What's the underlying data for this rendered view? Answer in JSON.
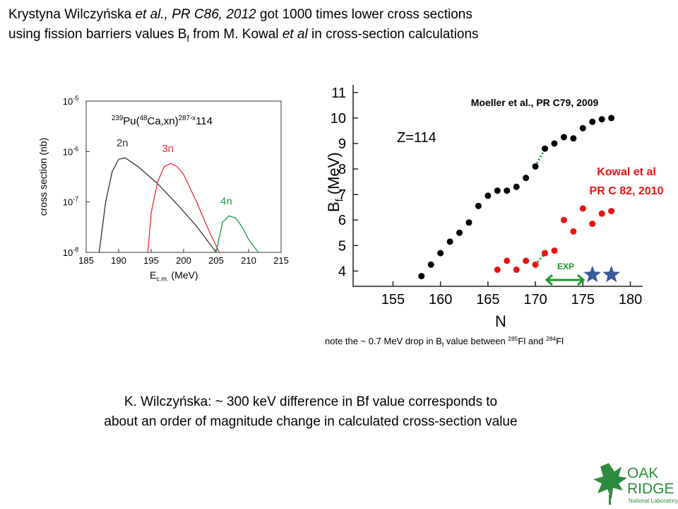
{
  "header": {
    "lines": [
      [
        {
          "text": "Krystyna Wilczyńska "
        },
        {
          "text": "et al., PR C86, 2012",
          "style": "i"
        },
        {
          "text": "  got 1000 times lower cross sections"
        }
      ],
      [
        {
          "text": "using fission barriers values B"
        },
        {
          "text": "f",
          "style": "sub"
        },
        {
          "text": "  from M. Kowal "
        },
        {
          "text": "et al",
          "style": "i"
        },
        {
          "text": " in cross-section calculations"
        }
      ]
    ]
  },
  "chart_data": [
    {
      "type": "line",
      "log_y": true,
      "title_parts": [
        {
          "text": "239",
          "style": "sup"
        },
        {
          "text": "Pu("
        },
        {
          "text": "48",
          "style": "sup"
        },
        {
          "text": "Ca,xn)"
        },
        {
          "text": "287-x",
          "style": "sup"
        },
        {
          "text": "114"
        }
      ],
      "xlabel_parts": [
        {
          "text": "E"
        },
        {
          "text": "c.m.",
          "style": "sub"
        },
        {
          "text": " (MeV)"
        }
      ],
      "ylabel": "cross section (nb)",
      "xlim": [
        185,
        215
      ],
      "xticks": [
        185,
        190,
        195,
        200,
        205,
        210,
        215
      ],
      "ylim": [
        1e-08,
        1e-05
      ],
      "yticks": [
        {
          "value": 1e-08,
          "label": "10",
          "sup": "-8"
        },
        {
          "value": 1e-07,
          "label": "10",
          "sup": "-7"
        },
        {
          "value": 1e-06,
          "label": "10",
          "sup": "-6"
        },
        {
          "value": 1e-05,
          "label": "10",
          "sup": "-5"
        }
      ],
      "series": [
        {
          "name": "2n",
          "color": "#333333",
          "x": [
            187,
            188,
            189,
            190,
            191,
            193,
            196,
            199,
            202,
            205
          ],
          "values": [
            1e-08,
            1e-07,
            4e-07,
            7e-07,
            7.5e-07,
            5e-07,
            2.3e-07,
            9e-08,
            3.3e-08,
            1e-08
          ]
        },
        {
          "name": "3n",
          "color": "#e8303a",
          "x": [
            194.5,
            195,
            196,
            197,
            198,
            199,
            200,
            202,
            204,
            205.5
          ],
          "values": [
            1e-08,
            6e-08,
            2.5e-07,
            5e-07,
            5.8e-07,
            5e-07,
            3.5e-07,
            1e-07,
            2.5e-08,
            1e-08
          ]
        },
        {
          "name": "4n",
          "color": "#1a9a4a",
          "x": [
            205,
            205.5,
            206,
            207,
            208,
            209,
            210,
            211.5
          ],
          "values": [
            1e-08,
            2e-08,
            4e-08,
            5.3e-08,
            4.8e-08,
            3.2e-08,
            1.8e-08,
            1e-08
          ]
        }
      ]
    },
    {
      "type": "scatter",
      "xlabel": "N",
      "ylabel_parts": [
        {
          "text": "B"
        },
        {
          "text": "f",
          "style": "sub"
        },
        {
          "text": " (MeV)"
        }
      ],
      "annotation": "Z=114",
      "xlim": [
        150.8,
        181.3
      ],
      "xticks": [
        155,
        160,
        165,
        170,
        175,
        180
      ],
      "ylim": [
        3.4,
        11.3
      ],
      "yticks": [
        4,
        5,
        6,
        7,
        8,
        9,
        10,
        11
      ],
      "series": [
        {
          "name": "Moeller et al., PR C79, 2009",
          "color": "#000000",
          "marker": "circle",
          "x": [
            158,
            159,
            160,
            161,
            162,
            163,
            164,
            165,
            166,
            167,
            168,
            169,
            170,
            171,
            172,
            173,
            174,
            175,
            176,
            177,
            178
          ],
          "values": [
            3.8,
            4.25,
            4.7,
            5.15,
            5.5,
            5.9,
            6.55,
            6.95,
            7.15,
            7.15,
            7.3,
            7.65,
            8.1,
            8.8,
            9.0,
            9.25,
            9.2,
            9.6,
            9.85,
            9.95,
            10.0
          ]
        },
        {
          "name": "Kowal et al",
          "reference": "PR C 82, 2010",
          "color": "#ee1111",
          "marker": "circle",
          "x": [
            166,
            167,
            168,
            169,
            170,
            171,
            172,
            173,
            174,
            175,
            176,
            177,
            178
          ],
          "values": [
            4.05,
            4.4,
            4.05,
            4.4,
            4.25,
            4.7,
            4.8,
            6.0,
            5.55,
            6.45,
            5.85,
            6.25,
            6.35
          ]
        },
        {
          "name": "EXP",
          "color": "#3a5a9a",
          "marker": "star",
          "x": [
            176,
            178
          ],
          "values": [
            3.85,
            3.85
          ]
        }
      ]
    }
  ],
  "note": [
    {
      "text": "note the ~ 0.7 MeV drop in B"
    },
    {
      "text": "f",
      "style": "sub"
    },
    {
      "text": " value between "
    },
    {
      "text": "285",
      "style": "sup"
    },
    {
      "text": "Fl and "
    },
    {
      "text": "284",
      "style": "sup"
    },
    {
      "text": "Fl"
    }
  ],
  "footer": {
    "lines": [
      "K. Wilczyńska:  ~ 300 keV difference in Bf value corresponds to",
      "about an order of  magnitude change in calculated cross-section value"
    ]
  },
  "logo": {
    "lines": [
      "OAK",
      "RIDGE"
    ],
    "subtitle": "National Laboratory"
  }
}
